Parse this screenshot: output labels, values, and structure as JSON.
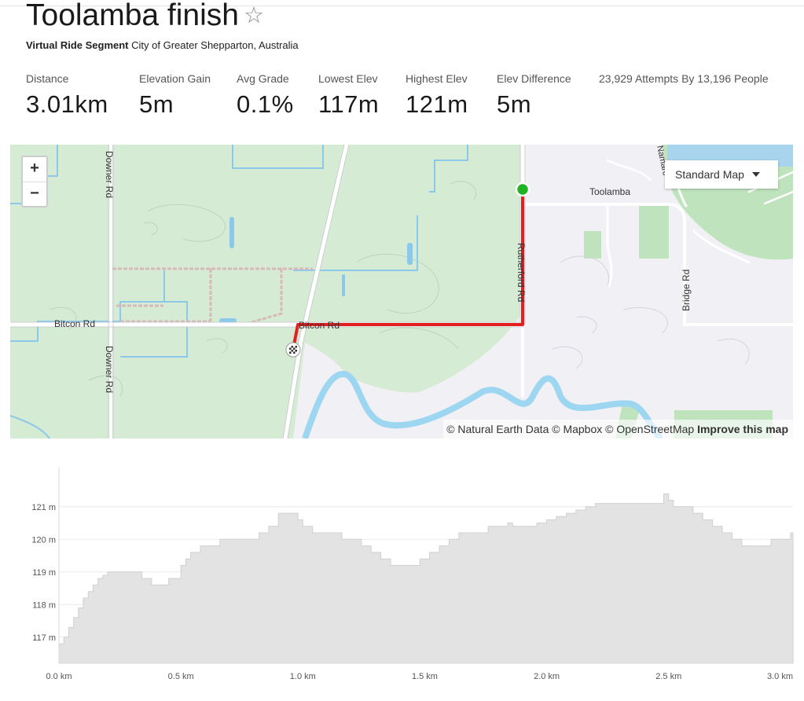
{
  "segment": {
    "title": "Toolamba finish",
    "star_icon": "star-outline-icon",
    "kind": "Virtual Ride Segment",
    "location": "City of Greater Shepparton, Australia"
  },
  "stats": [
    {
      "label": "Distance",
      "value": "3.01km"
    },
    {
      "label": "Elevation Gain",
      "value": "5m"
    },
    {
      "label": "Avg Grade",
      "value": "0.1%"
    },
    {
      "label": "Lowest Elev",
      "value": "117m"
    },
    {
      "label": "Highest Elev",
      "value": "121m"
    },
    {
      "label": "Elev Difference",
      "value": "5m"
    }
  ],
  "attempts": "23,929 Attempts By 13,196 People",
  "map": {
    "zoom_in": "+",
    "zoom_out": "−",
    "map_type": "Standard Map",
    "labels": {
      "downer_rd_top": "Downer Rd",
      "downer_rd_bottom": "Downer Rd",
      "bitcon_rd_left": "Bitcon Rd",
      "bitcon_rd_right": "Bitcon Rd",
      "rutherford_rd": "Rutherford Rd",
      "bridge_rd": "Bridge Rd",
      "toolamba": "Toolamba",
      "namarc": "Namarc"
    },
    "attribution": "© Natural Earth Data © Mapbox © OpenStreetMap",
    "improve_link": "Improve this map",
    "colors": {
      "route": "#e41f1f",
      "start": "#22b322",
      "park": "#d5ebd3",
      "water": "#7cc6e8",
      "river": "#9cd6f0"
    }
  },
  "chart_data": {
    "type": "area",
    "x_unit": "km",
    "y_unit": "m",
    "xlim": [
      0,
      3.01
    ],
    "ylim": [
      116.2,
      122.2
    ],
    "yticks": [
      117,
      118,
      119,
      120,
      121
    ],
    "ytick_labels": [
      "117 m",
      "118 m",
      "119 m",
      "120 m",
      "121 m"
    ],
    "xticks": [
      0,
      0.5,
      1.0,
      1.5,
      2.0,
      2.5,
      3.01
    ],
    "xtick_labels": [
      "0.0 km",
      "0.5 km",
      "1.0 km",
      "1.5 km",
      "2.0 km",
      "2.5 km",
      "3.0 km"
    ],
    "grid": true,
    "color": "#e3e3e3",
    "x": [
      0,
      0.02,
      0.04,
      0.06,
      0.08,
      0.1,
      0.12,
      0.14,
      0.16,
      0.18,
      0.2,
      0.22,
      0.24,
      0.26,
      0.3,
      0.34,
      0.36,
      0.38,
      0.4,
      0.45,
      0.5,
      0.52,
      0.54,
      0.58,
      0.62,
      0.66,
      0.7,
      0.74,
      0.78,
      0.82,
      0.86,
      0.9,
      0.94,
      0.98,
      1.0,
      1.04,
      1.08,
      1.12,
      1.16,
      1.2,
      1.24,
      1.28,
      1.32,
      1.36,
      1.4,
      1.44,
      1.48,
      1.52,
      1.56,
      1.6,
      1.64,
      1.68,
      1.72,
      1.76,
      1.8,
      1.84,
      1.86,
      1.88,
      1.92,
      1.96,
      2.0,
      2.04,
      2.08,
      2.12,
      2.16,
      2.2,
      2.24,
      2.28,
      2.32,
      2.36,
      2.4,
      2.44,
      2.48,
      2.5,
      2.52,
      2.56,
      2.6,
      2.64,
      2.68,
      2.72,
      2.76,
      2.8,
      2.84,
      2.88,
      2.92,
      2.96,
      3.0,
      3.01
    ],
    "y": [
      116.8,
      117.0,
      117.3,
      117.6,
      117.9,
      118.2,
      118.4,
      118.6,
      118.8,
      118.9,
      119.0,
      119.0,
      119.0,
      119.0,
      119.0,
      118.8,
      118.8,
      118.6,
      118.6,
      118.8,
      119.2,
      119.4,
      119.6,
      119.8,
      119.8,
      120.0,
      120.0,
      120.0,
      120.0,
      120.2,
      120.4,
      120.8,
      120.8,
      120.6,
      120.4,
      120.2,
      120.2,
      120.2,
      120.0,
      120.0,
      119.8,
      119.6,
      119.4,
      119.2,
      119.2,
      119.2,
      119.4,
      119.6,
      119.8,
      120.0,
      120.2,
      120.2,
      120.2,
      120.4,
      120.4,
      120.5,
      120.4,
      120.4,
      120.4,
      120.5,
      120.6,
      120.7,
      120.8,
      120.9,
      121.0,
      121.1,
      121.1,
      121.1,
      121.1,
      121.1,
      121.1,
      121.1,
      121.4,
      121.2,
      121.0,
      121.0,
      120.8,
      120.6,
      120.4,
      120.2,
      120.0,
      119.8,
      119.8,
      119.8,
      120.0,
      120.0,
      120.2,
      120.2
    ]
  }
}
